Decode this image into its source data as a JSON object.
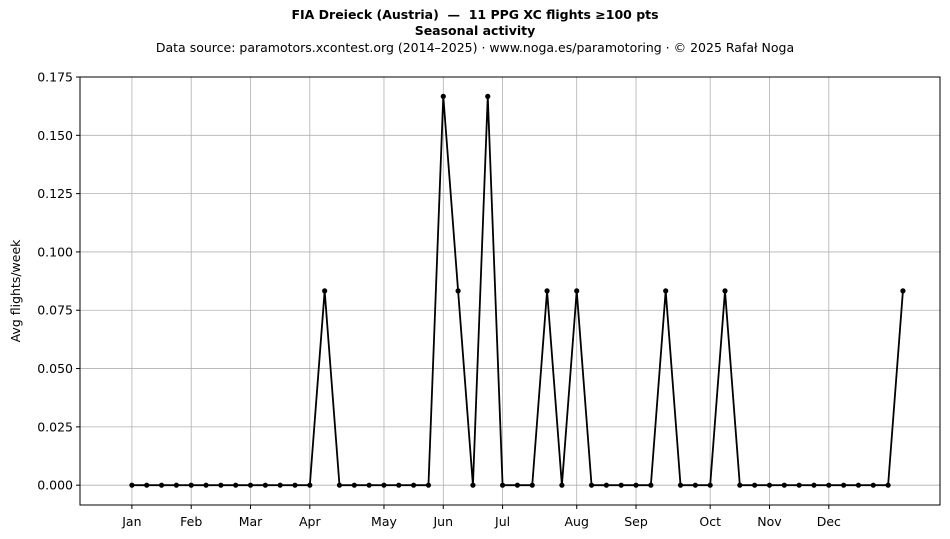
{
  "chart_data": {
    "type": "line",
    "title": "FIA Dreieck (Austria)  —  11 PPG XC flights ≥100 pts",
    "subtitle": "Seasonal activity",
    "source_note": "Data source: paramotors.xcontest.org (2014–2025)  ·  www.noga.es/paramotoring  ·  © 2025 Rafał Noga",
    "xlabel": "",
    "ylabel": "Avg flights/week",
    "ylim": [
      -0.0085,
      0.175
    ],
    "yticks": [
      0.0,
      0.025,
      0.05,
      0.075,
      0.1,
      0.125,
      0.15,
      0.175
    ],
    "ytick_labels": [
      "0.000",
      "0.025",
      "0.050",
      "0.075",
      "0.100",
      "0.125",
      "0.150",
      "0.175"
    ],
    "xlim": [
      -2.5,
      55.5
    ],
    "x_ticks": [
      {
        "label": "Jan",
        "week": 1
      },
      {
        "label": "Feb",
        "week": 5
      },
      {
        "label": "Mar",
        "week": 9
      },
      {
        "label": "Apr",
        "week": 13
      },
      {
        "label": "May",
        "week": 18
      },
      {
        "label": "Jun",
        "week": 22
      },
      {
        "label": "Jul",
        "week": 26
      },
      {
        "label": "Aug",
        "week": 31
      },
      {
        "label": "Sep",
        "week": 35
      },
      {
        "label": "Oct",
        "week": 40
      },
      {
        "label": "Nov",
        "week": 44
      },
      {
        "label": "Dec",
        "week": 48
      }
    ],
    "grid": true,
    "color": "#000000",
    "series": [
      {
        "name": "",
        "x": [
          1,
          2,
          3,
          4,
          5,
          6,
          7,
          8,
          9,
          10,
          11,
          12,
          13,
          14,
          15,
          16,
          17,
          18,
          19,
          20,
          21,
          22,
          23,
          24,
          25,
          26,
          27,
          28,
          29,
          30,
          31,
          32,
          33,
          34,
          35,
          36,
          37,
          38,
          39,
          40,
          41,
          42,
          43,
          44,
          45,
          46,
          47,
          48,
          49,
          50,
          51,
          52,
          53
        ],
        "values": [
          0,
          0,
          0,
          0,
          0,
          0,
          0,
          0,
          0,
          0,
          0,
          0,
          0,
          0.0833,
          0,
          0,
          0,
          0,
          0,
          0,
          0,
          0.1667,
          0.0833,
          0,
          0.1667,
          0,
          0,
          0,
          0.0833,
          0,
          0.0833,
          0,
          0,
          0,
          0,
          0,
          0.0833,
          0,
          0,
          0,
          0.0833,
          0,
          0,
          0,
          0,
          0,
          0,
          0,
          0,
          0,
          0,
          0,
          0.0833
        ]
      }
    ]
  }
}
